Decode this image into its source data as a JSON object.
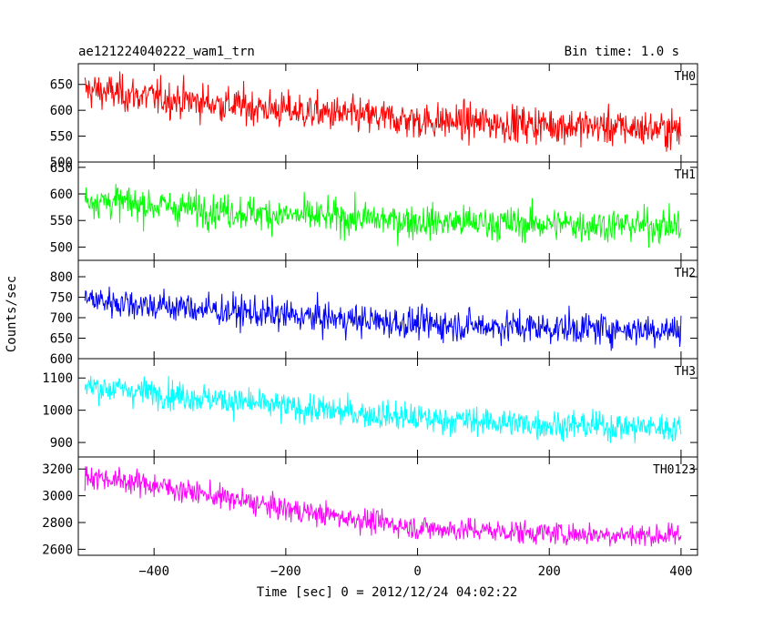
{
  "header": {
    "title": "ae121224040222_wam1_trn",
    "bin_time": "Bin time: 1.0 s"
  },
  "chart_data": {
    "type": "line",
    "title": "ae121224040222_wam1_trn",
    "xlabel": "Time [sec] 0 = 2012/12/24 04:02:22",
    "ylabel": "Counts/sec",
    "xlim": [
      -515,
      425
    ],
    "x_ticks": [
      -400,
      -200,
      0,
      200,
      400
    ],
    "x_start": -505,
    "x_end": 400,
    "grid": false,
    "panels": [
      {
        "name": "TH0",
        "color": "#ff0000",
        "ylim": [
          500,
          690
        ],
        "y_ticks": [
          500,
          550,
          600,
          650
        ],
        "trend": [
          [
            -505,
            640
          ],
          [
            -400,
            625
          ],
          [
            -200,
            600
          ],
          [
            0,
            580
          ],
          [
            200,
            572
          ],
          [
            400,
            562
          ]
        ],
        "noise_amplitude": 30
      },
      {
        "name": "TH1",
        "color": "#00ff00",
        "ylim": [
          475,
          660
        ],
        "y_ticks": [
          500,
          550,
          600,
          650
        ],
        "trend": [
          [
            -505,
            590
          ],
          [
            -400,
            578
          ],
          [
            -200,
            560
          ],
          [
            0,
            548
          ],
          [
            200,
            543
          ],
          [
            400,
            540
          ]
        ],
        "noise_amplitude": 27
      },
      {
        "name": "TH2",
        "color": "#0000ff",
        "ylim": [
          600,
          840
        ],
        "y_ticks": [
          600,
          650,
          700,
          750,
          800
        ],
        "trend": [
          [
            -505,
            745
          ],
          [
            -400,
            730
          ],
          [
            -200,
            705
          ],
          [
            0,
            685
          ],
          [
            200,
            675
          ],
          [
            400,
            670
          ]
        ],
        "noise_amplitude": 33
      },
      {
        "name": "TH3",
        "color": "#00ffff",
        "ylim": [
          855,
          1160
        ],
        "y_ticks": [
          900,
          1000,
          1100
        ],
        "trend": [
          [
            -505,
            1075
          ],
          [
            -400,
            1055
          ],
          [
            -200,
            1010
          ],
          [
            0,
            975
          ],
          [
            200,
            955
          ],
          [
            400,
            945
          ]
        ],
        "noise_amplitude": 38
      },
      {
        "name": "TH0123",
        "color": "#ff00ff",
        "ylim": [
          2555,
          3290
        ],
        "y_ticks": [
          2600,
          2800,
          3000,
          3200
        ],
        "trend": [
          [
            -505,
            3150
          ],
          [
            -400,
            3080
          ],
          [
            -200,
            2900
          ],
          [
            0,
            2760
          ],
          [
            200,
            2720
          ],
          [
            400,
            2700
          ]
        ],
        "noise_amplitude": 75
      }
    ]
  }
}
